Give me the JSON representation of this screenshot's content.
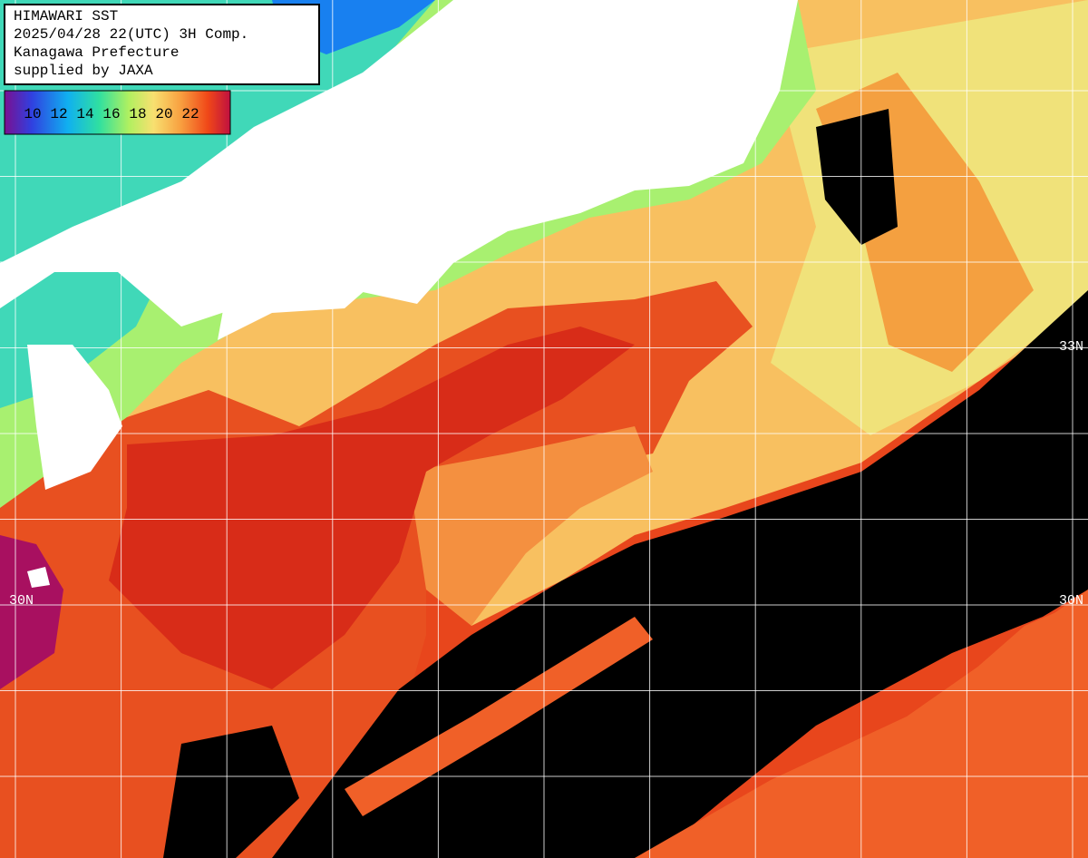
{
  "header": {
    "lines": [
      "HIMAWARI SST",
      "2025/04/28 22(UTC) 3H Comp.",
      "Kanagawa Prefecture",
      "supplied by JAXA"
    ]
  },
  "legend": {
    "labels": [
      10,
      12,
      14,
      16,
      18,
      20,
      22
    ]
  },
  "latitudes": {
    "left": [
      "30N"
    ],
    "right": [
      "33N",
      "30N"
    ]
  }
}
